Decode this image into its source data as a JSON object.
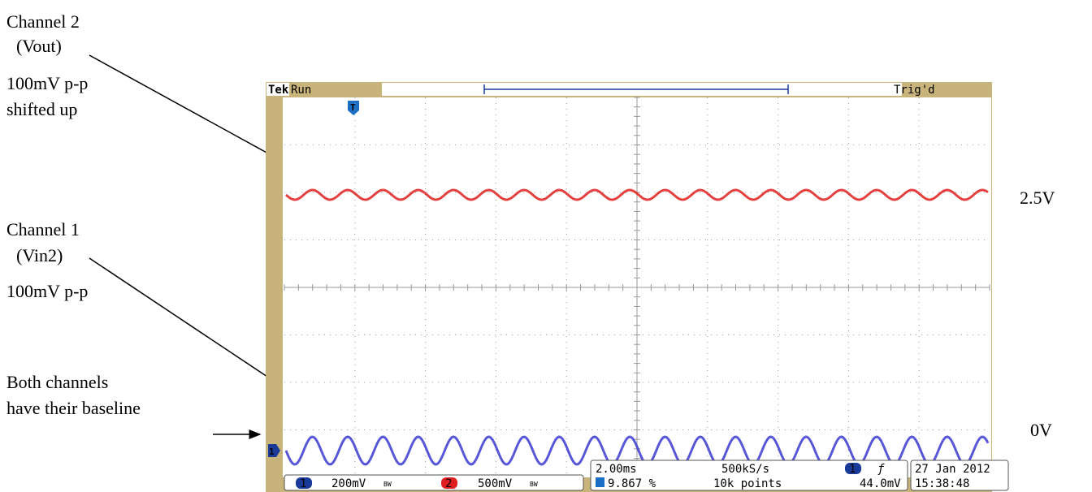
{
  "annotations": {
    "channel2": [
      "Channel 2",
      "(Vout)",
      "100mV p-p",
      "shifted up"
    ],
    "channel1": [
      "Channel 1",
      "(Vin2)",
      "100mV p-p"
    ],
    "baseline": [
      "Both channels",
      "have their baseline"
    ],
    "level_high": "2.5V",
    "level_low": "0V"
  },
  "scope": {
    "brand": "Tek",
    "status": "Run",
    "trigger_status": "Trig'd",
    "trigger_marker": "T",
    "ch1_marker": "1",
    "ch1": {
      "label": "1",
      "scale": "200mV",
      "bw": "BW"
    },
    "ch2": {
      "label": "2",
      "scale": "500mV",
      "bw": "BW"
    },
    "timebase": "2.00ms",
    "sample_rate": "500kS/s",
    "record_length": "10k points",
    "trigger_position": "9.867 %",
    "trigger_source": "1",
    "trigger_slope": "ƒ",
    "trigger_level": "44.0mV",
    "date": "27 Jan 2012",
    "time": "15:38:48"
  }
}
